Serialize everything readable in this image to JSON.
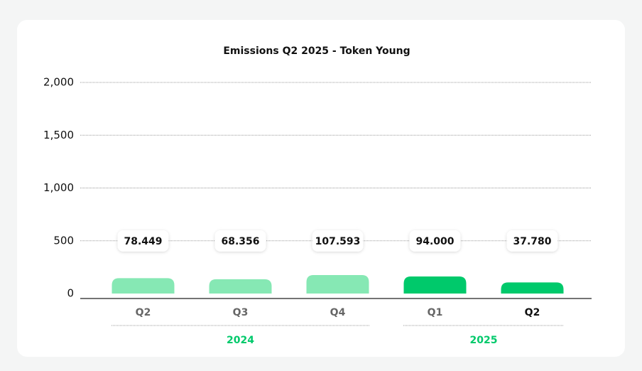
{
  "chart_data": {
    "type": "bar",
    "title": "Emissions Q2 2025 - Token Young",
    "categories": [
      "Q2",
      "Q3",
      "Q4",
      "Q1",
      "Q2"
    ],
    "groups": [
      {
        "label": "2024",
        "span": 3
      },
      {
        "label": "2025",
        "span": 2
      }
    ],
    "values": [
      78.449,
      68.356,
      107.593,
      94.0,
      37.78
    ],
    "value_labels": [
      "78.449",
      "68.356",
      "107.593",
      "94.000",
      "37.780"
    ],
    "colors": [
      "#86e8b4",
      "#86e8b4",
      "#86e8b4",
      "#00c96b",
      "#00c96b"
    ],
    "group_label_color": "#00c96b",
    "ylim": [
      0,
      2000
    ],
    "yticks": [
      0,
      {
        "value": 500,
        "label": "500"
      },
      {
        "value": 1000,
        "label": "1,000"
      },
      {
        "value": 1500,
        "label": "1,500"
      },
      {
        "value": 2000,
        "label": "2,000"
      }
    ],
    "grid": true
  }
}
